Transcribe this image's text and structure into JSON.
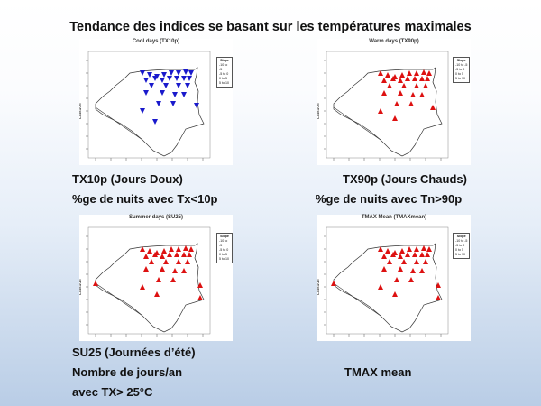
{
  "slide": {
    "title": "Tendance des indices se basant sur les températures maximales"
  },
  "panels": [
    {
      "title": "Cool days (TX10p)",
      "ylabel": "Latitude",
      "xlabel": "Longitude",
      "color": "#1a1acc",
      "marker": "down",
      "legend": {
        "title": "Slope",
        "items": [
          "-10 to -5",
          "-5 to 0",
          "0 to 5",
          "5 to 10"
        ]
      }
    },
    {
      "title": "Warm days (TX90p)",
      "ylabel": "Latitude",
      "xlabel": "Longitude",
      "color": "#dd1111",
      "marker": "up",
      "legend": {
        "title": "Slope",
        "items": [
          "-10 to -5",
          "-5 to 0",
          "0 to 5",
          "5 to 10"
        ]
      }
    },
    {
      "title": "Summer days (SU25)",
      "ylabel": "Latitude",
      "xlabel": "Longitude",
      "color": "#dd1111",
      "marker": "up",
      "legend": {
        "title": "Slope",
        "items": [
          "-10 to -5",
          "-5 to 0",
          "0 to 5",
          "5 to 10"
        ]
      }
    },
    {
      "title": "TMAX Mean (TMAXmean)",
      "ylabel": "Latitude",
      "xlabel": "Longitude",
      "color": "#dd1111",
      "marker": "up",
      "legend": {
        "title": "Slope",
        "items": [
          "-10 to -5",
          "-5 to 0",
          "0 to 5",
          "5 to 10"
        ]
      }
    }
  ],
  "captions": {
    "tx10p": {
      "line1": "TX10p (Jours Doux)",
      "line2": "%ge de nuits avec Tx<10p"
    },
    "tx90p": {
      "line1": "TX90p (Jours Chauds)",
      "line2": "%ge de nuits avec Tn>90p"
    },
    "su25": {
      "line1": "SU25 (Journées d’été)",
      "line2": "Nombre de jours/an",
      "line3": "avec TX> 25°C"
    },
    "tmax": {
      "line1": "TMAX mean"
    }
  }
}
